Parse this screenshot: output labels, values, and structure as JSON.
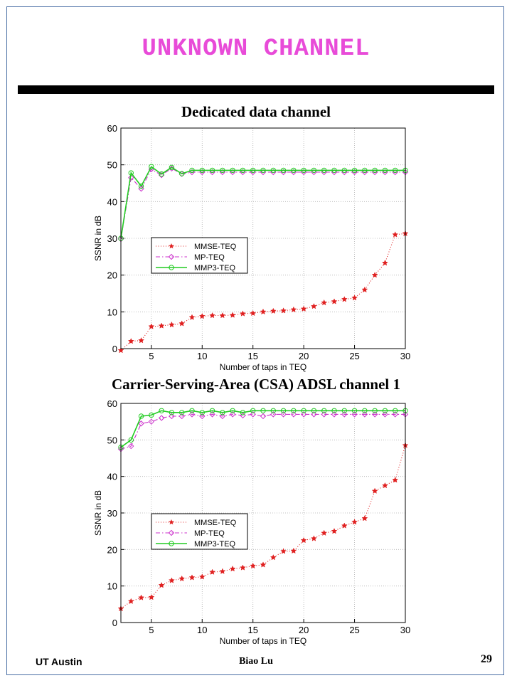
{
  "slide": {
    "title": "UNKNOWN CHANNEL",
    "footer_left": "UT Austin",
    "footer_center": "Biao Lu",
    "page_number": "29"
  },
  "colors": {
    "title": "#e84bd8",
    "mmse": "#e02020",
    "mp": "#cc33cc",
    "mmp3": "#22cc22"
  },
  "chart_data": [
    {
      "type": "line",
      "title": "Dedicated data channel",
      "xlabel": "Number of taps in TEQ",
      "ylabel": "SSNR in dB",
      "xlim": [
        2,
        30
      ],
      "ylim": [
        0,
        60
      ],
      "xticks": [
        5,
        10,
        15,
        20,
        25,
        30
      ],
      "yticks": [
        0,
        10,
        20,
        30,
        40,
        50,
        60
      ],
      "grid": true,
      "legend_position": "center-left",
      "x": [
        2,
        3,
        4,
        5,
        6,
        7,
        8,
        9,
        10,
        11,
        12,
        13,
        14,
        15,
        16,
        17,
        18,
        19,
        20,
        21,
        22,
        23,
        24,
        25,
        26,
        27,
        28,
        29,
        30
      ],
      "series": [
        {
          "name": "MMSE-TEQ",
          "style": "dotted-star",
          "values": [
            -0.5,
            2,
            2.2,
            6,
            6.2,
            6.5,
            6.8,
            8.5,
            8.8,
            9,
            9,
            9.1,
            9.5,
            9.6,
            10,
            10.2,
            10.3,
            10.6,
            10.8,
            11.5,
            12.5,
            12.8,
            13.4,
            13.8,
            16,
            20,
            23.3,
            31,
            31.3
          ]
        },
        {
          "name": "MP-TEQ",
          "style": "dashdot-diamond",
          "values": [
            29.8,
            46.5,
            43.5,
            48.8,
            47.2,
            49,
            47.5,
            48,
            48,
            48,
            48,
            48,
            48,
            48,
            48,
            48,
            48,
            48,
            48,
            48,
            48,
            48,
            48,
            48,
            48,
            48,
            48,
            48,
            48
          ]
        },
        {
          "name": "MMP3-TEQ",
          "style": "solid-circle",
          "values": [
            30,
            47.8,
            44.2,
            49.5,
            47.5,
            49.3,
            47.6,
            48.5,
            48.5,
            48.5,
            48.5,
            48.5,
            48.5,
            48.5,
            48.5,
            48.5,
            48.5,
            48.5,
            48.5,
            48.5,
            48.5,
            48.5,
            48.5,
            48.5,
            48.5,
            48.5,
            48.5,
            48.5,
            48.5
          ]
        }
      ]
    },
    {
      "type": "line",
      "title": "Carrier-Serving-Area (CSA) ADSL channel 1",
      "xlabel": "Number of taps in TEQ",
      "ylabel": "SSNR in dB",
      "xlim": [
        2,
        30
      ],
      "ylim": [
        0,
        60
      ],
      "xticks": [
        5,
        10,
        15,
        20,
        25,
        30
      ],
      "yticks": [
        0,
        10,
        20,
        30,
        40,
        50,
        60
      ],
      "grid": true,
      "legend_position": "center-left",
      "x": [
        2,
        3,
        4,
        5,
        6,
        7,
        8,
        9,
        10,
        11,
        12,
        13,
        14,
        15,
        16,
        17,
        18,
        19,
        20,
        21,
        22,
        23,
        24,
        25,
        26,
        27,
        28,
        29,
        30
      ],
      "series": [
        {
          "name": "MMSE-TEQ",
          "style": "dotted-star",
          "values": [
            3.8,
            5.8,
            6.8,
            6.9,
            10.2,
            11.5,
            12,
            12.3,
            12.5,
            13.8,
            14,
            14.7,
            15,
            15.5,
            15.8,
            17.8,
            19.5,
            19.6,
            22.5,
            23,
            24.5,
            25,
            26.5,
            27.5,
            28.5,
            36,
            37.5,
            39,
            48.5
          ]
        },
        {
          "name": "MP-TEQ",
          "style": "dashdot-diamond",
          "values": [
            47.5,
            48.3,
            54.5,
            55,
            56,
            56.5,
            56.5,
            57,
            56.5,
            57,
            56.5,
            57,
            56.7,
            57,
            56.5,
            57,
            57,
            57,
            57,
            57,
            57,
            57,
            57,
            57,
            57,
            57,
            57,
            57,
            57
          ]
        },
        {
          "name": "MMP3-TEQ",
          "style": "solid-circle",
          "values": [
            48,
            50,
            56.5,
            56.8,
            58,
            57.5,
            57.5,
            58,
            57.5,
            58,
            57.5,
            58,
            57.5,
            58,
            58,
            58,
            58,
            58,
            58,
            58,
            58,
            58,
            58,
            58,
            58,
            58,
            58,
            58,
            58
          ]
        }
      ]
    }
  ]
}
